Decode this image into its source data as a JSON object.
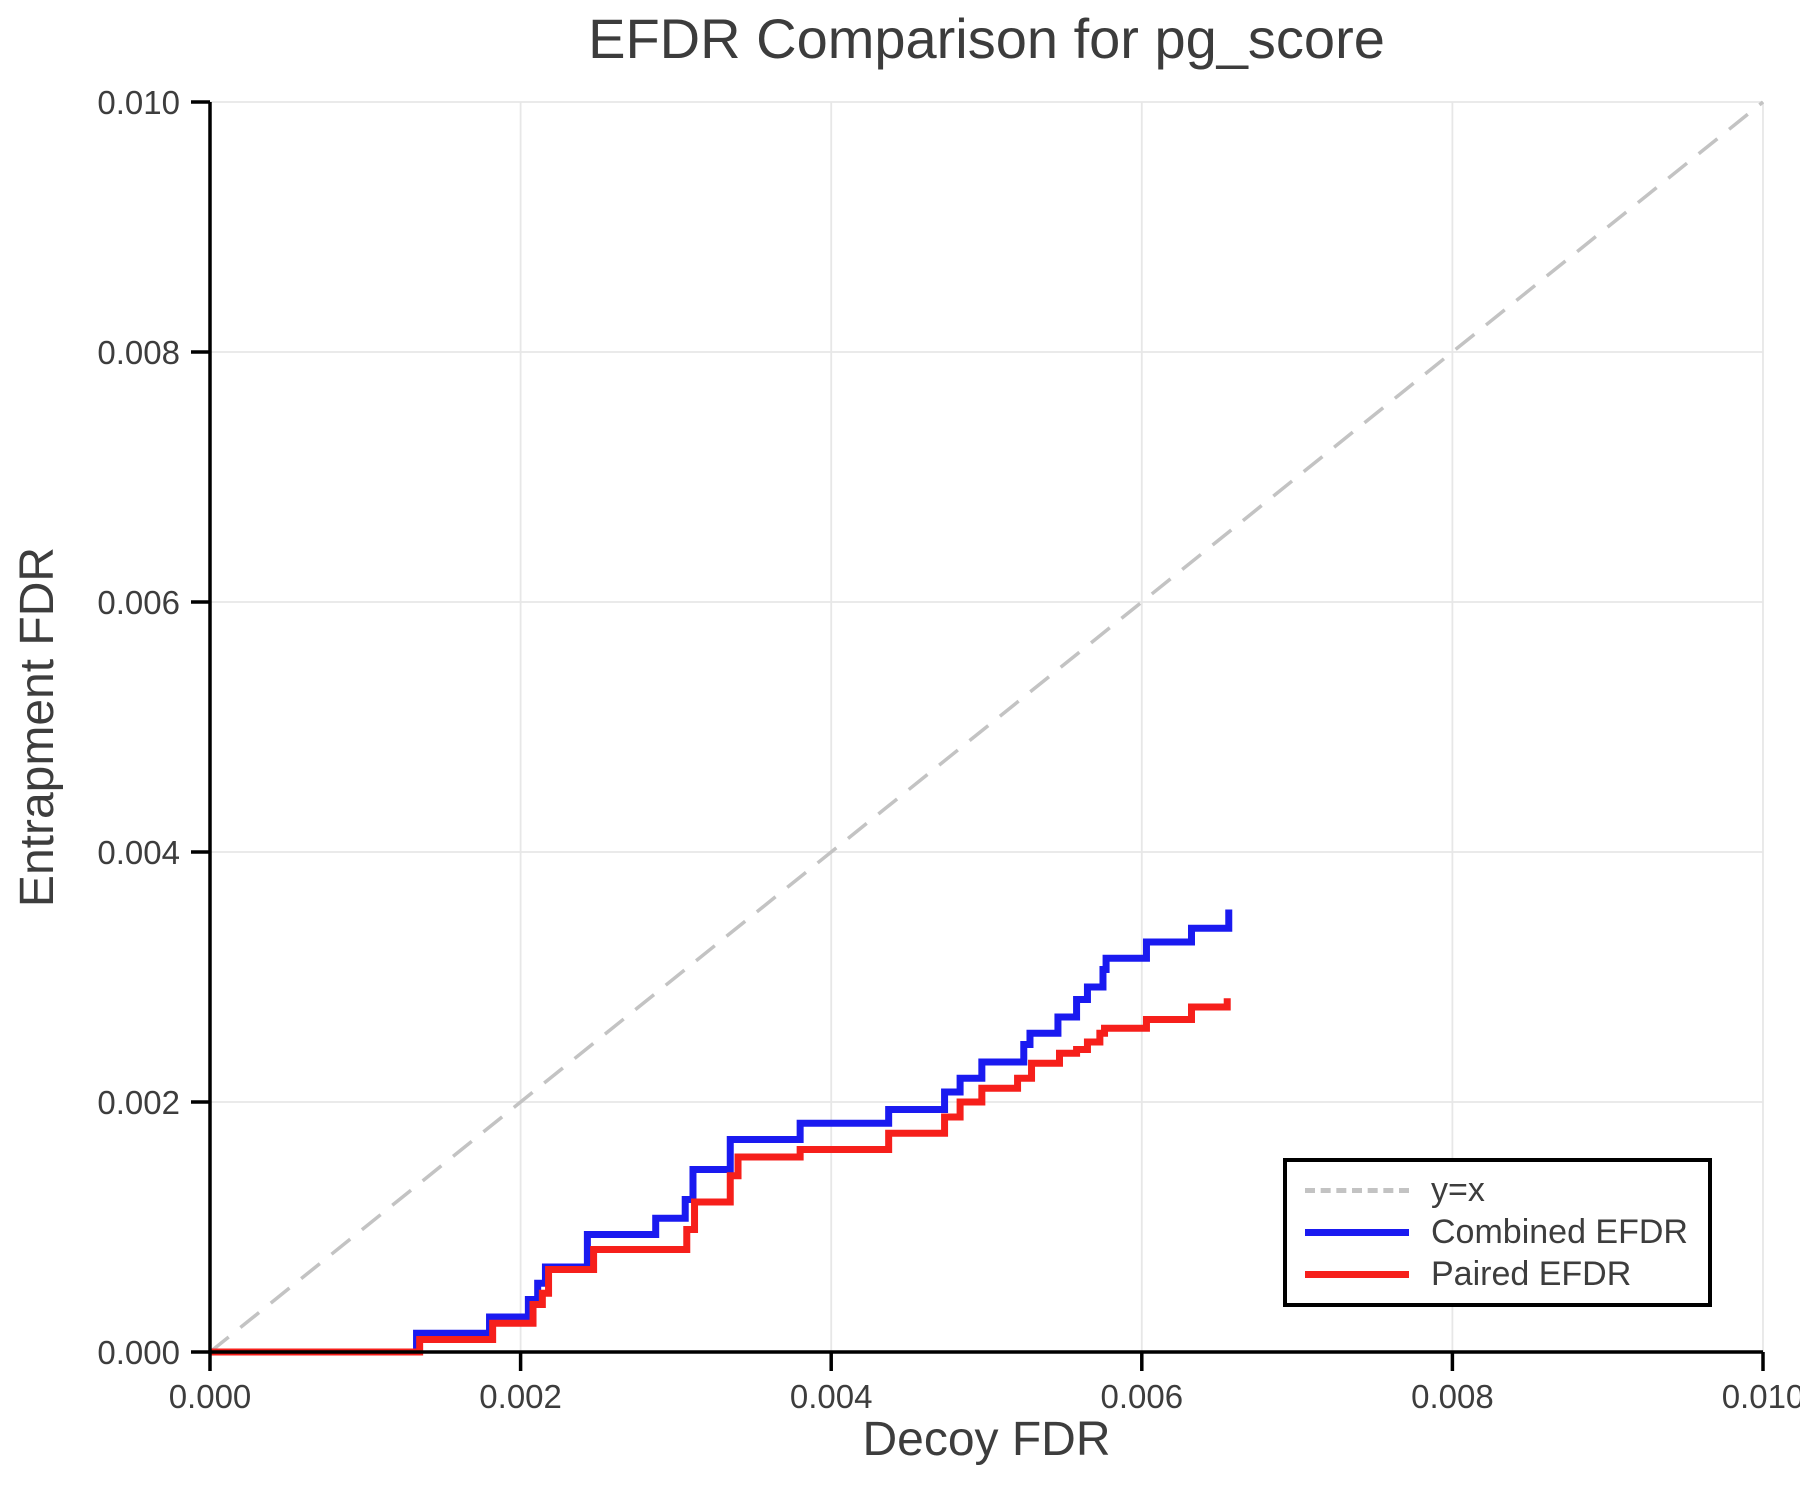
{
  "title": "EFDR Comparison for pg_score",
  "axes": {
    "x_label": "Decoy FDR",
    "y_label": "Entrapment FDR"
  },
  "legend": {
    "items": [
      {
        "label": "y=x",
        "style": "dashed",
        "color_key": "identity"
      },
      {
        "label": "Combined EFDR",
        "style": "solid",
        "color_key": "combined"
      },
      {
        "label": "Paired EFDR",
        "style": "solid",
        "color_key": "paired"
      }
    ]
  },
  "colors": {
    "identity": "#c3c3c3",
    "combined": "#1a1af0",
    "paired": "#f61f1b",
    "grid": "#e7e7e7",
    "spine": "#000000",
    "text": "#3d3d3d"
  },
  "chart_data": {
    "type": "line",
    "title": "EFDR Comparison for pg_score",
    "xlabel": "Decoy FDR",
    "ylabel": "Entrapment FDR",
    "xlim": [
      0.0,
      0.01
    ],
    "ylim": [
      0.0,
      0.01
    ],
    "grid": true,
    "legend_position": "lower right",
    "x_ticks": {
      "values": [
        0.0,
        0.002,
        0.004,
        0.006,
        0.008,
        0.01
      ],
      "labels": [
        "0.000",
        "0.002",
        "0.004",
        "0.006",
        "0.008",
        "0.010"
      ]
    },
    "y_ticks": {
      "values": [
        0.0,
        0.002,
        0.004,
        0.006,
        0.008,
        0.01
      ],
      "labels": [
        "0.000",
        "0.002",
        "0.004",
        "0.006",
        "0.008",
        "0.010"
      ]
    },
    "series": [
      {
        "name": "y=x",
        "mode": "line",
        "style": "dashed",
        "color_key": "identity",
        "width": 3.5,
        "points": [
          [
            0.0,
            0.0
          ],
          [
            0.01,
            0.01
          ]
        ]
      },
      {
        "name": "Combined EFDR",
        "mode": "step",
        "style": "solid",
        "color_key": "combined",
        "width": 7,
        "points": [
          [
            0.0,
            0.0
          ],
          [
            0.00133,
            0.00015
          ],
          [
            0.0018,
            0.00028
          ],
          [
            0.00205,
            0.00042
          ],
          [
            0.00211,
            0.00055
          ],
          [
            0.00216,
            0.00068
          ],
          [
            0.00243,
            0.00094
          ],
          [
            0.00287,
            0.00107
          ],
          [
            0.00306,
            0.00122
          ],
          [
            0.00311,
            0.00146
          ],
          [
            0.00335,
            0.0017
          ],
          [
            0.0038,
            0.00183
          ],
          [
            0.00437,
            0.00194
          ],
          [
            0.00473,
            0.00208
          ],
          [
            0.00483,
            0.00219
          ],
          [
            0.00497,
            0.00232
          ],
          [
            0.00524,
            0.00246
          ],
          [
            0.00528,
            0.00255
          ],
          [
            0.00546,
            0.00268
          ],
          [
            0.00558,
            0.00282
          ],
          [
            0.00565,
            0.00292
          ],
          [
            0.00575,
            0.00306
          ],
          [
            0.00577,
            0.00315
          ],
          [
            0.00603,
            0.00328
          ],
          [
            0.00632,
            0.00339
          ],
          [
            0.00656,
            0.00354
          ]
        ]
      },
      {
        "name": "Paired EFDR",
        "mode": "step",
        "style": "solid",
        "color_key": "paired",
        "width": 7,
        "points": [
          [
            0.0,
            0.0
          ],
          [
            0.00135,
            0.0001
          ],
          [
            0.00182,
            0.00023
          ],
          [
            0.00208,
            0.00038
          ],
          [
            0.00214,
            0.00047
          ],
          [
            0.00218,
            0.00066
          ],
          [
            0.00247,
            0.00082
          ],
          [
            0.00307,
            0.00098
          ],
          [
            0.00312,
            0.0012
          ],
          [
            0.00335,
            0.00141
          ],
          [
            0.0034,
            0.00156
          ],
          [
            0.0038,
            0.00162
          ],
          [
            0.00437,
            0.00175
          ],
          [
            0.00473,
            0.00188
          ],
          [
            0.00483,
            0.002
          ],
          [
            0.00497,
            0.00211
          ],
          [
            0.0052,
            0.00219
          ],
          [
            0.00529,
            0.00231
          ],
          [
            0.00547,
            0.00239
          ],
          [
            0.00558,
            0.00242
          ],
          [
            0.00565,
            0.00248
          ],
          [
            0.00573,
            0.00255
          ],
          [
            0.00576,
            0.00259
          ],
          [
            0.00603,
            0.00266
          ],
          [
            0.00632,
            0.00276
          ],
          [
            0.00655,
            0.00283
          ]
        ]
      }
    ]
  }
}
